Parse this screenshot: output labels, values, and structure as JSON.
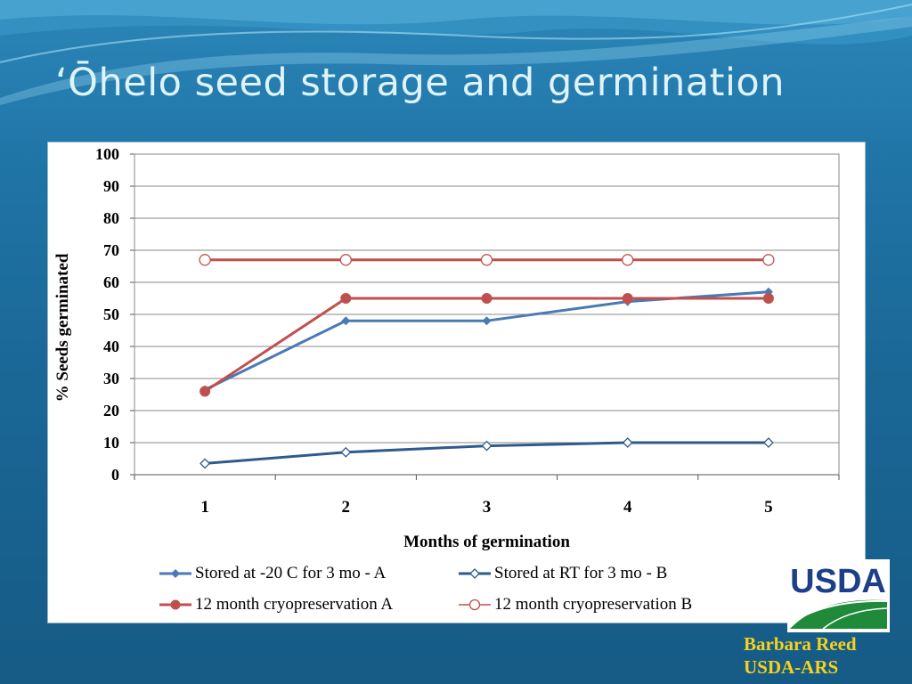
{
  "slide": {
    "title": "‘Ōhelo seed storage and germination",
    "credit_name": "Barbara Reed",
    "credit_org": "USDA-ARS",
    "logo_text": "USDA"
  },
  "colors": {
    "background": "#1a6796",
    "title": "#dff3fb",
    "credit": "#f6d21a",
    "series_minus20": "#4a7ab4",
    "series_rt": "#2e5a8c",
    "series_cryo": "#c0504d"
  },
  "chart_data": {
    "type": "line",
    "title": "",
    "xlabel": "Months of germination",
    "ylabel": "%  Seeds germinated",
    "x": [
      1,
      2,
      3,
      4,
      5
    ],
    "ylim": [
      0,
      100
    ],
    "yticks": [
      0,
      10,
      20,
      30,
      40,
      50,
      60,
      70,
      80,
      90,
      100
    ],
    "grid": true,
    "legend_position": "bottom",
    "series": [
      {
        "name": "Stored at -20 C for 3 mo - A",
        "values": [
          26.5,
          48,
          48,
          54,
          57
        ],
        "color": "#4a7ab4",
        "marker": "filled-diamond"
      },
      {
        "name": "Stored at RT for 3 mo - B",
        "values": [
          3.5,
          7,
          9,
          10,
          10
        ],
        "color": "#2e5a8c",
        "marker": "open-diamond"
      },
      {
        "name": "12 month cryopreservation A",
        "values": [
          26,
          55,
          55,
          55,
          55
        ],
        "color": "#c0504d",
        "marker": "filled-circle"
      },
      {
        "name": "12 month cryopreservation B",
        "values": [
          67,
          67,
          67,
          67,
          67
        ],
        "color": "#c0504d",
        "marker": "open-circle"
      }
    ]
  }
}
